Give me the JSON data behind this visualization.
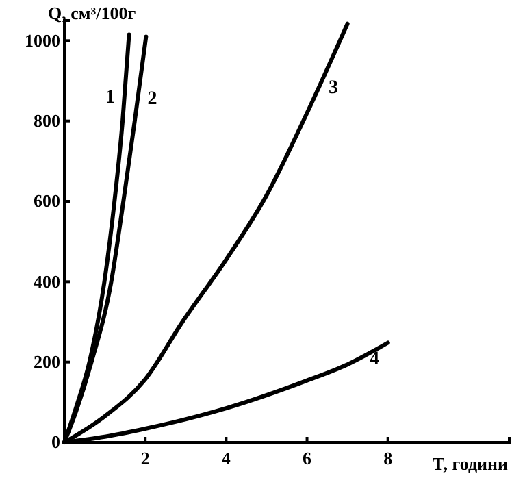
{
  "chart_data": {
    "type": "line",
    "xlabel": "T, години",
    "ylabel": "Q, см³/100г",
    "xlim": [
      0,
      11
    ],
    "ylim": [
      0,
      1050
    ],
    "xticks": [
      2,
      4,
      6,
      8
    ],
    "yticks": [
      0,
      200,
      400,
      600,
      800,
      1000
    ],
    "grid": false,
    "marker": "none",
    "line_style": "solid",
    "series": [
      {
        "name": "1",
        "color": "#000000",
        "x": [
          0,
          0.3,
          0.62,
          0.99,
          1.24,
          1.44,
          1.6
        ],
        "values": [
          0,
          90,
          200,
          400,
          600,
          800,
          1015
        ]
      },
      {
        "name": "2",
        "color": "#000000",
        "x": [
          0,
          0.3,
          0.67,
          1.16,
          1.46,
          1.74,
          2.02
        ],
        "values": [
          0,
          80,
          200,
          400,
          600,
          800,
          1010
        ]
      },
      {
        "name": "3",
        "color": "#000000",
        "x": [
          0,
          1,
          2,
          2.92,
          4,
          5,
          6,
          7
        ],
        "values": [
          0,
          65,
          157,
          300,
          455,
          615,
          820,
          1042
        ]
      },
      {
        "name": "4",
        "color": "#000000",
        "x": [
          0,
          1,
          2,
          4,
          6,
          7,
          8
        ],
        "values": [
          0,
          14,
          34,
          85,
          154,
          194,
          248
        ]
      }
    ]
  }
}
